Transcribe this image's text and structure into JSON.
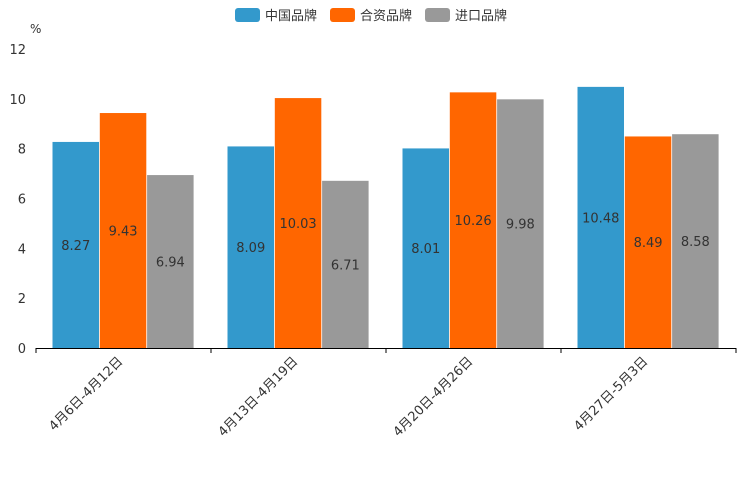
{
  "chart_data": {
    "type": "bar",
    "title": "",
    "xlabel": "",
    "ylabel": "%",
    "ylim": [
      0,
      12
    ],
    "yticks": [
      0,
      2,
      4,
      6,
      8,
      10,
      12
    ],
    "categories": [
      "4月6日-4月12日",
      "4月13日-4月19日",
      "4月20日-4月26日",
      "4月27日-5月3日"
    ],
    "series": [
      {
        "name": "中国品牌",
        "color": "#3399cc",
        "values": [
          8.27,
          8.09,
          8.01,
          10.48
        ]
      },
      {
        "name": "合资品牌",
        "color": "#ff6600",
        "values": [
          9.43,
          10.03,
          10.26,
          8.49
        ]
      },
      {
        "name": "进口品牌",
        "color": "#999999",
        "values": [
          6.94,
          6.71,
          9.98,
          8.58
        ]
      }
    ],
    "legend_position": "top-center",
    "grid": false
  }
}
